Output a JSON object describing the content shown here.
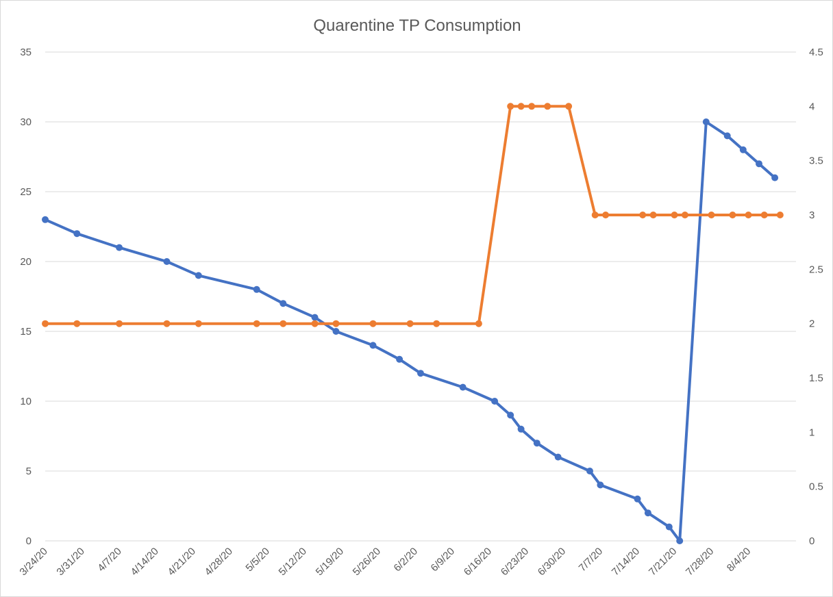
{
  "chart_data": {
    "type": "line",
    "title": "Quarentine TP Consumption",
    "xlabel": "",
    "ylabel": "",
    "grid": true,
    "y_left": {
      "min": 0,
      "max": 35,
      "ticks": [
        0,
        5,
        10,
        15,
        20,
        25,
        30,
        35
      ],
      "tick_labels": [
        "0",
        "5",
        "10",
        "15",
        "20",
        "25",
        "30",
        "35"
      ]
    },
    "y_right": {
      "min": 0,
      "max": 4.5,
      "ticks": [
        0,
        0.5,
        1,
        1.5,
        2,
        2.5,
        3,
        3.5,
        4,
        4.5
      ],
      "tick_labels": [
        "0",
        "0.5",
        "1",
        "1.5",
        "2",
        "2.5",
        "3",
        "3.5",
        "4",
        "4.5"
      ]
    },
    "x_axis": {
      "min": "2020-03-24",
      "max": "2020-08-13",
      "ticks": [
        "2020-03-24",
        "2020-03-31",
        "2020-04-07",
        "2020-04-14",
        "2020-04-21",
        "2020-04-28",
        "2020-05-05",
        "2020-05-12",
        "2020-05-19",
        "2020-05-26",
        "2020-06-02",
        "2020-06-09",
        "2020-06-16",
        "2020-06-23",
        "2020-06-30",
        "2020-07-07",
        "2020-07-14",
        "2020-07-21",
        "2020-07-28",
        "2020-08-04"
      ],
      "tick_labels": [
        "3/24/20",
        "3/31/20",
        "4/7/20",
        "4/14/20",
        "4/21/20",
        "4/28/20",
        "5/5/20",
        "5/12/20",
        "5/19/20",
        "5/26/20",
        "6/2/20",
        "6/9/20",
        "6/16/20",
        "6/23/20",
        "6/30/20",
        "7/7/20",
        "7/14/20",
        "7/21/20",
        "7/28/20",
        "8/4/20"
      ]
    },
    "series": [
      {
        "axis": "left",
        "color": "#4472c4",
        "points": [
          [
            "2020-03-24",
            23
          ],
          [
            "2020-03-30",
            22
          ],
          [
            "2020-04-07",
            21
          ],
          [
            "2020-04-16",
            20
          ],
          [
            "2020-04-22",
            19
          ],
          [
            "2020-05-03",
            18
          ],
          [
            "2020-05-08",
            17
          ],
          [
            "2020-05-14",
            16
          ],
          [
            "2020-05-18",
            15
          ],
          [
            "2020-05-25",
            14
          ],
          [
            "2020-05-30",
            13
          ],
          [
            "2020-06-03",
            12
          ],
          [
            "2020-06-11",
            11
          ],
          [
            "2020-06-17",
            10
          ],
          [
            "2020-06-20",
            9
          ],
          [
            "2020-06-22",
            8
          ],
          [
            "2020-06-25",
            7
          ],
          [
            "2020-06-29",
            6
          ],
          [
            "2020-07-05",
            5
          ],
          [
            "2020-07-07",
            4
          ],
          [
            "2020-07-14",
            3
          ],
          [
            "2020-07-16",
            2
          ],
          [
            "2020-07-20",
            1
          ],
          [
            "2020-07-22",
            0
          ],
          [
            "2020-07-27",
            30
          ],
          [
            "2020-07-31",
            29
          ],
          [
            "2020-08-03",
            28
          ],
          [
            "2020-08-06",
            27
          ],
          [
            "2020-08-09",
            26
          ]
        ]
      },
      {
        "axis": "right",
        "color": "#ed7d31",
        "points": [
          [
            "2020-03-24",
            2
          ],
          [
            "2020-03-30",
            2
          ],
          [
            "2020-04-07",
            2
          ],
          [
            "2020-04-16",
            2
          ],
          [
            "2020-04-22",
            2
          ],
          [
            "2020-05-03",
            2
          ],
          [
            "2020-05-08",
            2
          ],
          [
            "2020-05-14",
            2
          ],
          [
            "2020-05-18",
            2
          ],
          [
            "2020-05-25",
            2
          ],
          [
            "2020-06-01",
            2
          ],
          [
            "2020-06-06",
            2
          ],
          [
            "2020-06-14",
            2
          ],
          [
            "2020-06-20",
            4
          ],
          [
            "2020-06-22",
            4
          ],
          [
            "2020-06-24",
            4
          ],
          [
            "2020-06-27",
            4
          ],
          [
            "2020-07-01",
            4
          ],
          [
            "2020-07-06",
            3
          ],
          [
            "2020-07-08",
            3
          ],
          [
            "2020-07-15",
            3
          ],
          [
            "2020-07-17",
            3
          ],
          [
            "2020-07-21",
            3
          ],
          [
            "2020-07-23",
            3
          ],
          [
            "2020-07-28",
            3
          ],
          [
            "2020-08-01",
            3
          ],
          [
            "2020-08-04",
            3
          ],
          [
            "2020-08-07",
            3
          ],
          [
            "2020-08-10",
            3
          ]
        ]
      }
    ]
  }
}
